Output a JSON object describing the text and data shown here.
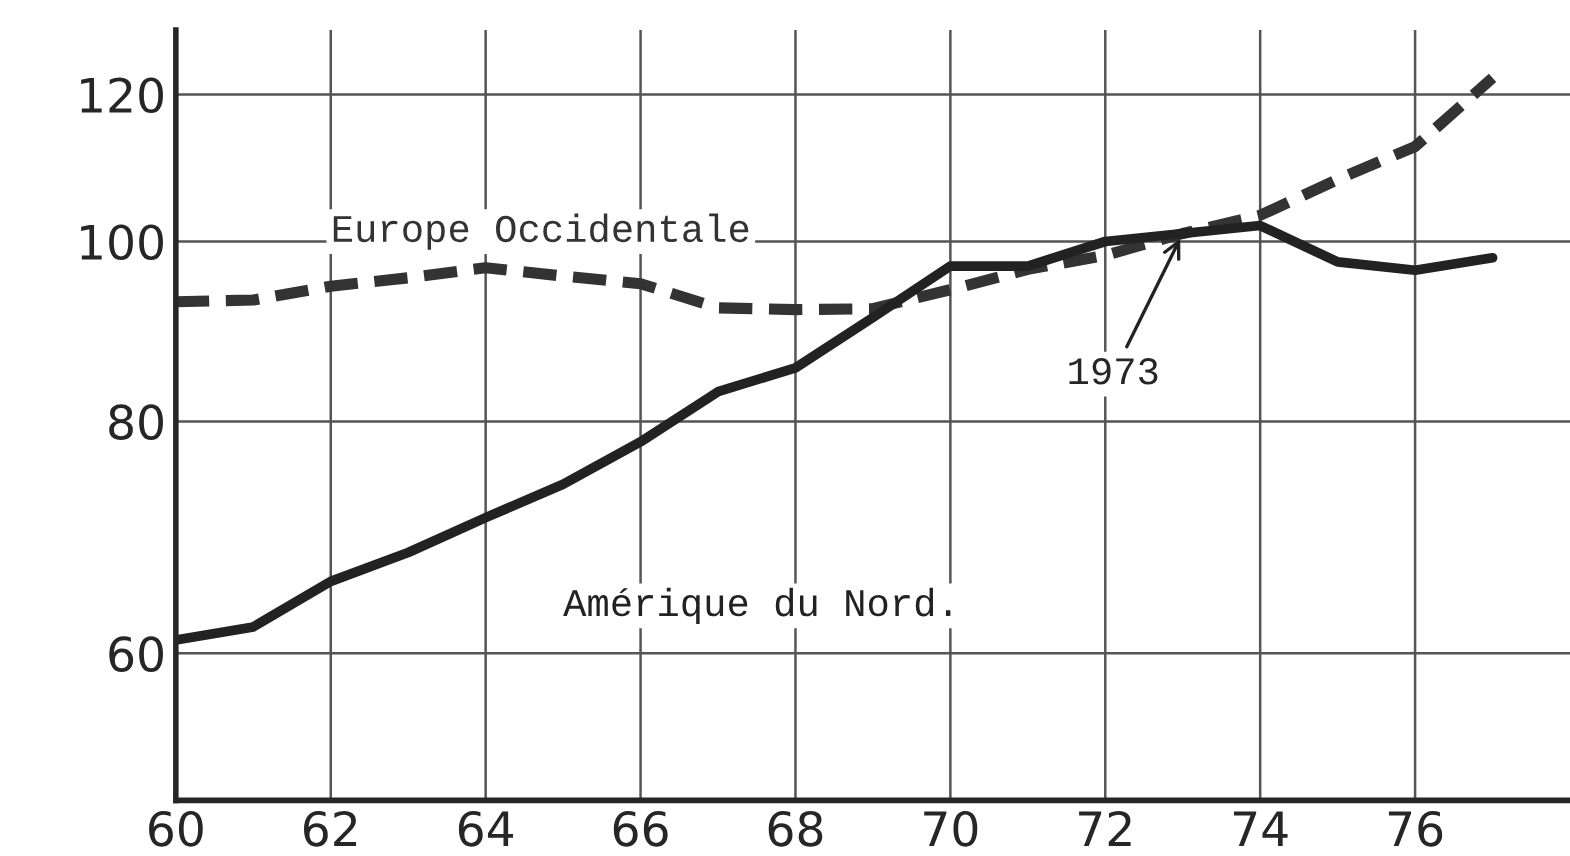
{
  "chart_data": {
    "type": "line",
    "x": [
      60,
      61,
      62,
      63,
      64,
      65,
      66,
      67,
      68,
      69,
      70,
      71,
      72,
      73,
      74,
      75,
      76,
      77
    ],
    "series": [
      {
        "name": "Europe Occidentale",
        "color": "#333333",
        "line_style": "dashed",
        "values": [
          92.8,
          93,
          94.6,
          95.6,
          96.8,
          95.8,
          94.9,
          92.1,
          91.9,
          92,
          94.2,
          96.6,
          98.3,
          101,
          103.3,
          108,
          112.5,
          122.5
        ]
      },
      {
        "name": "Amérique du Nord.",
        "color": "#222222",
        "line_style": "solid",
        "values": [
          61,
          62,
          65.6,
          68,
          71,
          74,
          78,
          83,
          85.5,
          91,
          97,
          97,
          100,
          101,
          102,
          97.5,
          96.5,
          98
        ]
      }
    ],
    "xlim": [
      60,
      78
    ],
    "xticks": [
      60,
      62,
      64,
      66,
      68,
      70,
      72,
      74,
      76
    ],
    "ylim": [
      50,
      130
    ],
    "yticks": [
      60,
      80,
      100,
      120
    ],
    "log": "y",
    "grid": true,
    "marker": "none",
    "annotations": [
      {
        "text": "1973",
        "x": 73,
        "y": 101
      }
    ]
  }
}
